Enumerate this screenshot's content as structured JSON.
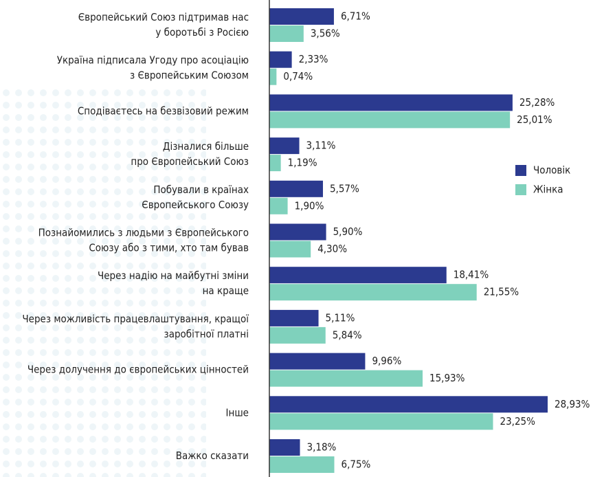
{
  "chart_data": {
    "type": "bar",
    "orientation": "horizontal",
    "categories": [
      [
        "Європейський Союз підтримав нас",
        "у боротьбі з Росією"
      ],
      [
        "Україна підписала Угоду про асоціацію",
        "з Європейським Союзом"
      ],
      [
        "Сподіваєтесь на безвізовий режим"
      ],
      [
        "Дізналися більше",
        "про Європейський Союз"
      ],
      [
        "Побували в країнах",
        "Європейського Союзу"
      ],
      [
        "Познайомились з людьми з Європейського",
        "Союзу або з тими, хто там бував"
      ],
      [
        "Через надію на майбутні зміни",
        "на краще"
      ],
      [
        "Через можливість працевлаштування, кращої",
        "заробітної платні"
      ],
      [
        "Через долучення до європейських цінностей"
      ],
      [
        "Інше"
      ],
      [
        "Важко сказати"
      ]
    ],
    "series": [
      {
        "name": "Чоловік",
        "color": "#2b3a8f",
        "values": [
          6.71,
          2.33,
          25.28,
          3.11,
          5.57,
          5.9,
          18.41,
          5.11,
          9.96,
          28.93,
          3.18
        ],
        "value_labels": [
          "6,71%",
          "2,33%",
          "25,28%",
          "3,11%",
          "5,57%",
          "5,90%",
          "18,41%",
          "5,11%",
          "9,96%",
          "28,93%",
          "3,18%"
        ]
      },
      {
        "name": "Жінка",
        "color": "#7fd1bc",
        "values": [
          3.56,
          0.74,
          25.01,
          1.19,
          1.9,
          4.3,
          21.55,
          5.84,
          15.93,
          23.25,
          6.75
        ],
        "value_labels": [
          "3,56%",
          "0,74%",
          "25,01%",
          "1,19%",
          "1,90%",
          "4,30%",
          "21,55%",
          "5,84%",
          "15,93%",
          "23,25%",
          "6,75%"
        ]
      }
    ],
    "legend": "right"
  }
}
